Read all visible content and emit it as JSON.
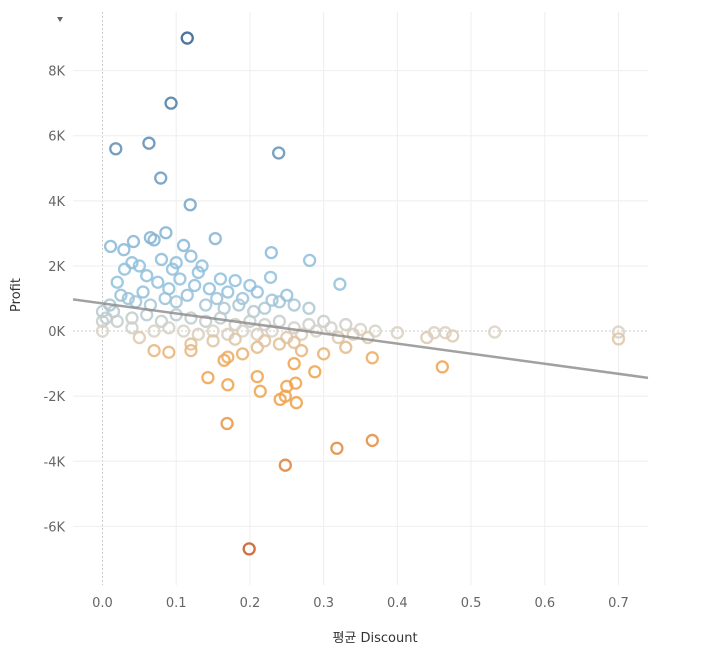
{
  "chart_data": {
    "type": "scatter",
    "xlabel": "평균 Discount",
    "ylabel": "Profit",
    "xlim": [
      -0.04,
      0.74
    ],
    "ylim": [
      -7.8,
      9.8
    ],
    "x_ticks": [
      0.0,
      0.1,
      0.2,
      0.3,
      0.4,
      0.5,
      0.6,
      0.7
    ],
    "x_tick_labels": [
      "0.0",
      "0.1",
      "0.2",
      "0.3",
      "0.4",
      "0.5",
      "0.6",
      "0.7"
    ],
    "y_ticks": [
      -6,
      -4,
      -2,
      0,
      2,
      4,
      6,
      8
    ],
    "y_tick_labels": [
      "-6K",
      "-4K",
      "-2K",
      "0K",
      "2K",
      "4K",
      "6K",
      "8K"
    ],
    "y_unit": "K",
    "grid": true,
    "trend_line": {
      "slope": -3.09,
      "intercept": 0.85
    },
    "color_scale": {
      "negative": "#c9561f",
      "mid_negative": "#f0a24a",
      "neutral": "#d8d2c6",
      "mid_positive": "#8fbfdd",
      "positive": "#2e5e8e"
    },
    "points": [
      [
        0.115,
        9.0
      ],
      [
        0.093,
        7.0
      ],
      [
        0.018,
        5.6
      ],
      [
        0.063,
        5.77
      ],
      [
        0.239,
        5.47
      ],
      [
        0.079,
        4.7
      ],
      [
        0.119,
        3.88
      ],
      [
        0.011,
        2.6
      ],
      [
        0.029,
        2.5
      ],
      [
        0.042,
        2.75
      ],
      [
        0.065,
        2.87
      ],
      [
        0.086,
        3.02
      ],
      [
        0.153,
        2.84
      ],
      [
        0.229,
        2.41
      ],
      [
        0.281,
        2.17
      ],
      [
        0.322,
        1.44
      ],
      [
        0.228,
        1.65
      ],
      [
        0.11,
        2.63
      ],
      [
        0.07,
        2.8
      ],
      [
        0.1,
        2.1
      ],
      [
        0.12,
        2.3
      ],
      [
        0.135,
        2.0
      ],
      [
        0.05,
        2.0
      ],
      [
        0.04,
        2.1
      ],
      [
        0.08,
        2.2
      ],
      [
        0.095,
        1.9
      ],
      [
        0.13,
        1.8
      ],
      [
        0.16,
        1.6
      ],
      [
        0.18,
        1.55
      ],
      [
        0.2,
        1.4
      ],
      [
        0.21,
        1.2
      ],
      [
        0.02,
        1.5
      ],
      [
        0.03,
        1.9
      ],
      [
        0.06,
        1.7
      ],
      [
        0.075,
        1.5
      ],
      [
        0.09,
        1.3
      ],
      [
        0.105,
        1.6
      ],
      [
        0.125,
        1.4
      ],
      [
        0.145,
        1.3
      ],
      [
        0.17,
        1.2
      ],
      [
        0.19,
        1.0
      ],
      [
        0.24,
        0.9
      ],
      [
        0.26,
        0.8
      ],
      [
        0.28,
        0.7
      ],
      [
        0.25,
        1.1
      ],
      [
        0.23,
        0.95
      ],
      [
        0.01,
        0.8
      ],
      [
        0.015,
        0.6
      ],
      [
        0.025,
        1.1
      ],
      [
        0.035,
        1.0
      ],
      [
        0.045,
        0.9
      ],
      [
        0.055,
        1.2
      ],
      [
        0.065,
        0.8
      ],
      [
        0.085,
        1.0
      ],
      [
        0.1,
        0.9
      ],
      [
        0.115,
        1.1
      ],
      [
        0.14,
        0.8
      ],
      [
        0.155,
        1.0
      ],
      [
        0.165,
        0.7
      ],
      [
        0.185,
        0.8
      ],
      [
        0.205,
        0.6
      ],
      [
        0.22,
        0.7
      ],
      [
        0.0,
        0.6
      ],
      [
        0.0,
        0.3
      ],
      [
        0.0,
        0.0
      ],
      [
        0.005,
        0.4
      ],
      [
        0.02,
        0.3
      ],
      [
        0.04,
        0.4
      ],
      [
        0.06,
        0.5
      ],
      [
        0.08,
        0.3
      ],
      [
        0.1,
        0.5
      ],
      [
        0.12,
        0.4
      ],
      [
        0.14,
        0.3
      ],
      [
        0.16,
        0.4
      ],
      [
        0.18,
        0.2
      ],
      [
        0.2,
        0.3
      ],
      [
        0.22,
        0.2
      ],
      [
        0.24,
        0.3
      ],
      [
        0.26,
        0.1
      ],
      [
        0.28,
        0.2
      ],
      [
        0.3,
        0.3
      ],
      [
        0.31,
        0.1
      ],
      [
        0.33,
        0.2
      ],
      [
        0.35,
        0.05
      ],
      [
        0.04,
        0.1
      ],
      [
        0.07,
        0.0
      ],
      [
        0.09,
        0.1
      ],
      [
        0.11,
        0.0
      ],
      [
        0.13,
        -0.1
      ],
      [
        0.15,
        0.0
      ],
      [
        0.17,
        -0.1
      ],
      [
        0.19,
        0.0
      ],
      [
        0.21,
        -0.1
      ],
      [
        0.23,
        0.0
      ],
      [
        0.25,
        -0.2
      ],
      [
        0.27,
        -0.1
      ],
      [
        0.29,
        0.0
      ],
      [
        0.32,
        -0.2
      ],
      [
        0.34,
        -0.1
      ],
      [
        0.36,
        -0.2
      ],
      [
        0.37,
        0.0
      ],
      [
        0.4,
        -0.05
      ],
      [
        0.44,
        -0.2
      ],
      [
        0.45,
        -0.05
      ],
      [
        0.465,
        -0.05
      ],
      [
        0.475,
        -0.15
      ],
      [
        0.532,
        -0.03
      ],
      [
        0.7,
        -0.03
      ],
      [
        0.7,
        -0.24
      ],
      [
        0.05,
        -0.2
      ],
      [
        0.07,
        -0.6
      ],
      [
        0.09,
        -0.65
      ],
      [
        0.12,
        -0.4
      ],
      [
        0.15,
        -0.3
      ],
      [
        0.165,
        -0.9
      ],
      [
        0.19,
        -0.7
      ],
      [
        0.21,
        -0.5
      ],
      [
        0.24,
        -0.4
      ],
      [
        0.27,
        -0.6
      ],
      [
        0.3,
        -0.7
      ],
      [
        0.33,
        -0.5
      ],
      [
        0.18,
        -0.25
      ],
      [
        0.22,
        -0.3
      ],
      [
        0.26,
        -0.35
      ],
      [
        0.12,
        -0.6
      ],
      [
        0.17,
        -0.8
      ],
      [
        0.26,
        -1.0
      ],
      [
        0.366,
        -0.82
      ],
      [
        0.461,
        -1.1
      ],
      [
        0.143,
        -1.43
      ],
      [
        0.17,
        -1.65
      ],
      [
        0.21,
        -1.4
      ],
      [
        0.214,
        -1.85
      ],
      [
        0.25,
        -1.7
      ],
      [
        0.262,
        -1.6
      ],
      [
        0.288,
        -1.25
      ],
      [
        0.241,
        -2.1
      ],
      [
        0.248,
        -2.0
      ],
      [
        0.263,
        -2.2
      ],
      [
        0.169,
        -2.84
      ],
      [
        0.366,
        -3.36
      ],
      [
        0.318,
        -3.6
      ],
      [
        0.248,
        -4.12
      ],
      [
        0.199,
        -6.69
      ]
    ]
  }
}
